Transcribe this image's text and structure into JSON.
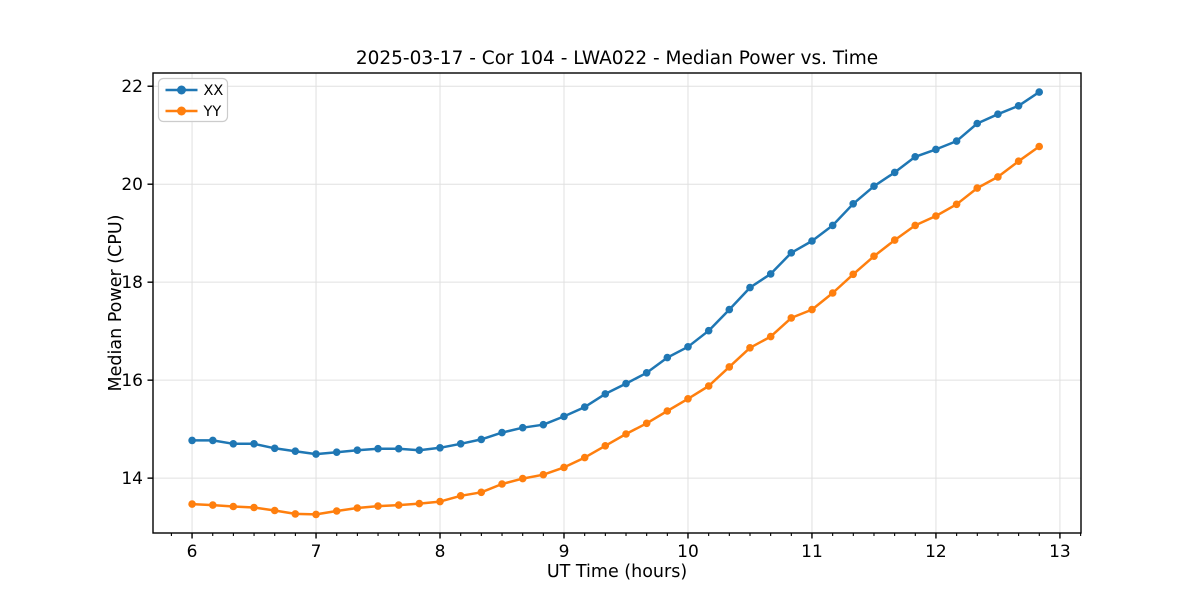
{
  "figure": {
    "title": "2025-03-17 - Cor 104 - LWA022 - Median Power vs. Time",
    "background_color": "#ffffff"
  },
  "chart_data": {
    "type": "line",
    "title": "2025-03-17 - Cor 104 - LWA022 - Median Power vs. Time",
    "xlabel": "UT Time (hours)",
    "ylabel": "Median Power (CPU)",
    "grid": true,
    "legend": {
      "position": "upper left",
      "entries": [
        {
          "label": "XX",
          "color": "#1f77b4"
        },
        {
          "label": "YY",
          "color": "#ff7f0e"
        }
      ]
    },
    "xlim": [
      5.685,
      13.17
    ],
    "ylim": [
      12.88,
      22.27
    ],
    "x_ticks": [
      6,
      7,
      8,
      9,
      10,
      11,
      12,
      13
    ],
    "x_tick_labels": [
      "6",
      "7",
      "8",
      "9",
      "10",
      "11",
      "12",
      "13"
    ],
    "x_minor_tick_step": 0.16667,
    "y_ticks": [
      14,
      16,
      18,
      20,
      22
    ],
    "y_tick_labels": [
      "14",
      "16",
      "18",
      "20",
      "22"
    ],
    "x": [
      6.0,
      6.167,
      6.333,
      6.5,
      6.667,
      6.833,
      7.0,
      7.167,
      7.333,
      7.5,
      7.667,
      7.833,
      8.0,
      8.167,
      8.333,
      8.5,
      8.667,
      8.833,
      9.0,
      9.167,
      9.333,
      9.5,
      9.667,
      9.833,
      10.0,
      10.167,
      10.333,
      10.5,
      10.667,
      10.833,
      11.0,
      11.167,
      11.333,
      11.5,
      11.667,
      11.833,
      12.0,
      12.167,
      12.333,
      12.5,
      12.667,
      12.833
    ],
    "series": [
      {
        "name": "XX",
        "color": "#1f77b4",
        "marker": "circle",
        "values": [
          14.77,
          14.77,
          14.7,
          14.7,
          14.61,
          14.55,
          14.49,
          14.53,
          14.57,
          14.6,
          14.6,
          14.57,
          14.62,
          14.7,
          14.79,
          14.93,
          15.03,
          15.09,
          15.26,
          15.45,
          15.72,
          15.93,
          16.15,
          16.46,
          16.68,
          17.01,
          17.44,
          17.89,
          18.17,
          18.6,
          18.84,
          19.16,
          19.6,
          19.96,
          20.24,
          20.56,
          20.71,
          20.88,
          21.24,
          21.43,
          21.6,
          21.88
        ]
      },
      {
        "name": "YY",
        "color": "#ff7f0e",
        "marker": "circle",
        "values": [
          13.47,
          13.45,
          13.42,
          13.4,
          13.34,
          13.27,
          13.26,
          13.33,
          13.39,
          13.43,
          13.45,
          13.48,
          13.52,
          13.64,
          13.71,
          13.88,
          13.99,
          14.07,
          14.22,
          14.42,
          14.66,
          14.9,
          15.12,
          15.37,
          15.62,
          15.88,
          16.27,
          16.66,
          16.89,
          17.27,
          17.44,
          17.78,
          18.16,
          18.53,
          18.86,
          19.16,
          19.35,
          19.59,
          19.92,
          20.15,
          20.47,
          20.77
        ]
      }
    ],
    "colors": {
      "grid": "#e0e0e0",
      "spine": "#000000",
      "legend_border": "#cccccc",
      "legend_background": "#ffffff"
    }
  }
}
